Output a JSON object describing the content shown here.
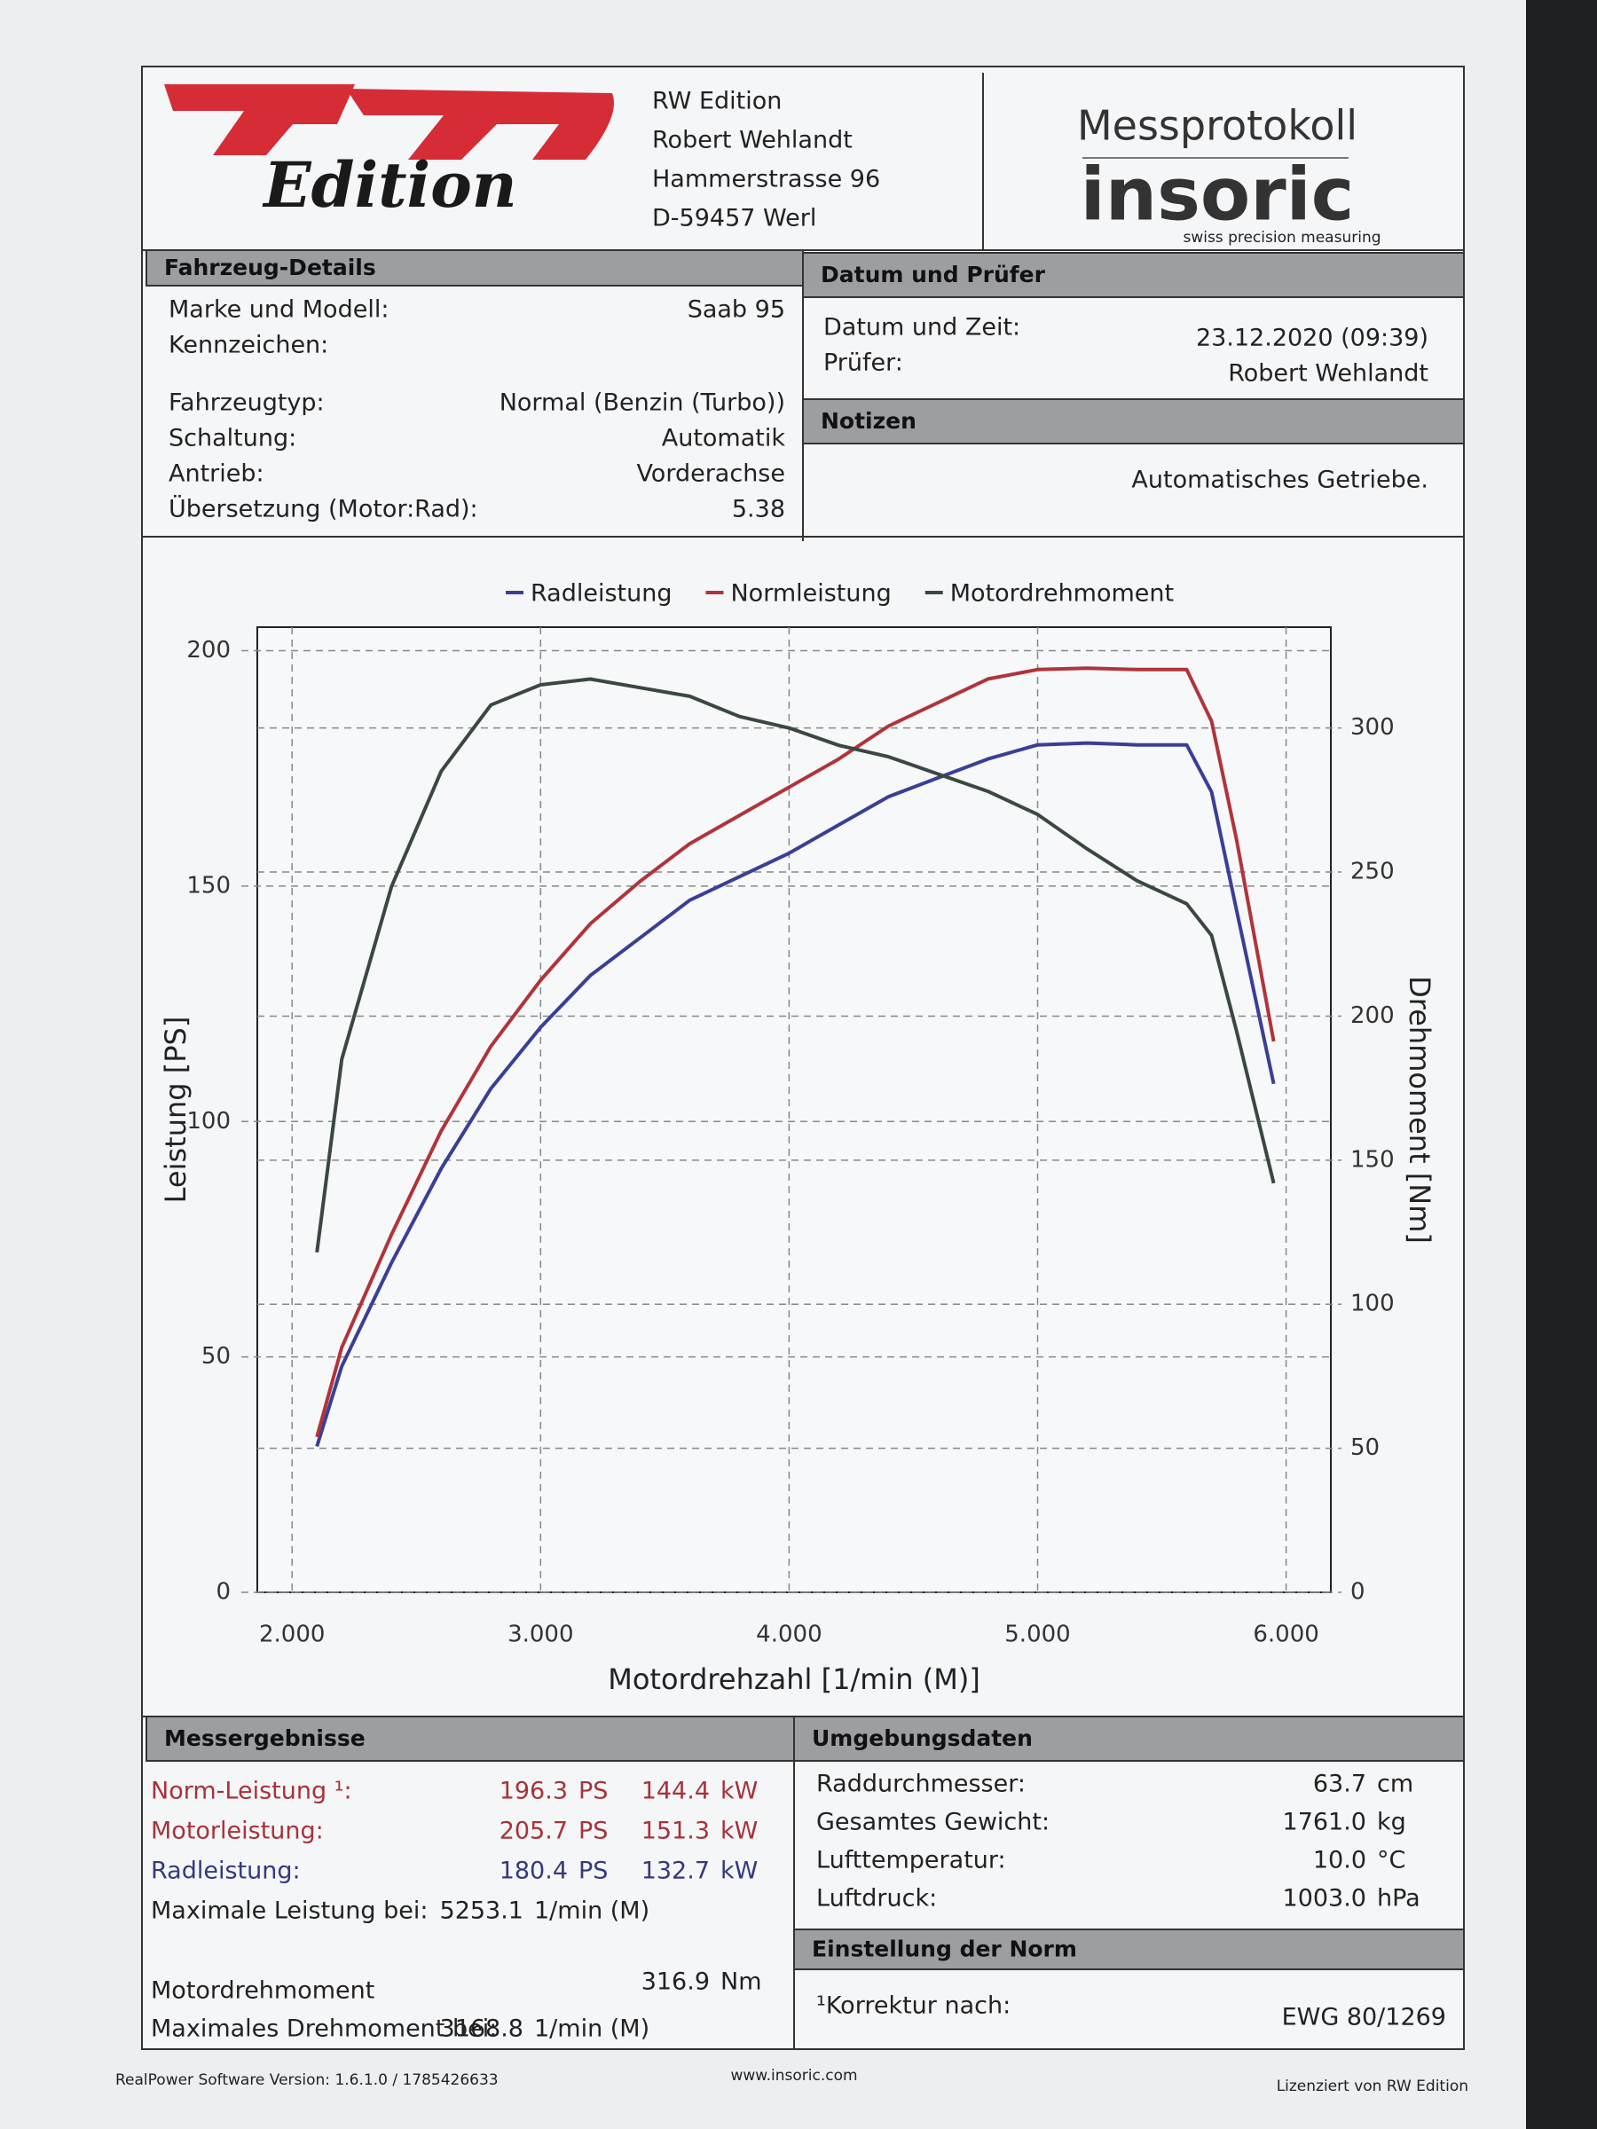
{
  "header": {
    "logo_text": "Edition",
    "address": [
      "RW Edition",
      "Robert Wehlandt",
      "Hammerstrasse 96",
      "D-59457 Werl"
    ],
    "title": "Messprotokoll",
    "brand": "insoric",
    "tagline": "swiss precision measuring"
  },
  "vehicle": {
    "title": "Fahrzeug-Details",
    "rows": [
      {
        "label": "Marke und Modell:",
        "value": "Saab 95"
      },
      {
        "label": "Kennzeichen:"
      },
      {
        "label": "Fahrzeugtyp:",
        "value": "Normal (Benzin (Turbo))"
      },
      {
        "label": "Schaltung:",
        "value": "Automatik"
      },
      {
        "label": "Antrieb:",
        "value": "Vorderachse"
      },
      {
        "label": "Übersetzung (Motor:Rad):",
        "value": "5.38"
      }
    ]
  },
  "inspection": {
    "title": "Datum und Prüfer",
    "rows": [
      {
        "label": "Datum und Zeit:",
        "value": "23.12.2020 (09:39)"
      },
      {
        "label": "Prüfer:",
        "value": "Robert Wehlandt"
      }
    ]
  },
  "notes": {
    "title": "Notizen",
    "text": "Automatisches Getriebe."
  },
  "chart_data": {
    "type": "line",
    "x_label": "Motordrehzahl [1/min (M)]",
    "y_label": "Leistung [PS]",
    "y2_label": "Drehmoment [Nm]",
    "x": [
      2100,
      2200,
      2400,
      2600,
      2800,
      3000,
      3200,
      3400,
      3600,
      3800,
      4000,
      4200,
      4400,
      4600,
      4800,
      5000,
      5200,
      5400,
      5600,
      5700,
      5800,
      5950
    ],
    "series": [
      {
        "name": "Radleistung",
        "color": "#3a3f96",
        "values": [
          31,
          48,
          70,
          90,
          107,
          120,
          131,
          139,
          147,
          152,
          157,
          163,
          169,
          173,
          177,
          180,
          180.4,
          180,
          180,
          170,
          145,
          108
        ]
      },
      {
        "name": "Normleistung",
        "color": "#b0343a",
        "values": [
          33,
          52,
          76,
          98,
          116,
          130,
          142,
          151,
          159,
          165,
          171,
          177,
          184,
          189,
          194,
          196,
          196.3,
          196,
          196,
          185,
          160,
          117
        ]
      },
      {
        "name": "Motordrehmoment",
        "color": "#3b4842",
        "axis": "y2",
        "values": [
          118,
          185,
          245,
          285,
          308,
          315,
          317,
          314,
          311,
          304,
          300,
          294,
          290,
          284,
          278,
          270,
          258,
          247,
          239,
          228,
          195,
          142
        ]
      }
    ],
    "xlim": [
      1860,
      6180
    ],
    "xticks": [
      {
        "value": 2000,
        "label": "2.000"
      },
      {
        "value": 3000,
        "label": "3.000"
      },
      {
        "value": 4000,
        "label": "4.000"
      },
      {
        "value": 5000,
        "label": "5.000"
      },
      {
        "value": 6000,
        "label": "6.000"
      }
    ],
    "ylim": [
      0,
      205
    ],
    "yticks": [
      0,
      50,
      100,
      150,
      200
    ],
    "y2lim": [
      0,
      335
    ],
    "y2ticks": [
      0,
      50,
      100,
      150,
      200,
      250,
      300
    ],
    "grid": true,
    "legend": "top"
  },
  "results": {
    "title": "Messergebnisse",
    "power_rows": [
      {
        "label": "Norm-Leistung ¹:",
        "ps": "196.3",
        "ps_unit": "PS",
        "kw": "144.4",
        "kw_unit": "kW"
      },
      {
        "label": "Motorleistung:",
        "ps": "205.7",
        "ps_unit": "PS",
        "kw": "151.3",
        "kw_unit": "kW"
      },
      {
        "label": "Radleistung:",
        "ps": "180.4",
        "ps_unit": "PS",
        "kw": "132.7",
        "kw_unit": "kW"
      }
    ],
    "max_power": {
      "label": "Maximale Leistung bei:",
      "value": "5253.1",
      "unit": "1/min (M)"
    },
    "torque": {
      "label": "Motordrehmoment",
      "value": "316.9",
      "unit": "Nm"
    },
    "max_torque": {
      "label": "Maximales Drehmoment bei:",
      "value": "3168.8",
      "unit": "1/min (M)"
    }
  },
  "environment": {
    "title": "Umgebungsdaten",
    "rows": [
      {
        "label": "Raddurchmesser:",
        "value": "63.7",
        "unit": "cm"
      },
      {
        "label": "Gesamtes Gewicht:",
        "value": "1761.0",
        "unit": "kg"
      },
      {
        "label": "Lufttemperatur:",
        "value": "10.0",
        "unit": "°C"
      },
      {
        "label": "Luftdruck:",
        "value": "1003.0",
        "unit": "hPa"
      }
    ]
  },
  "norm": {
    "title": "Einstellung der Norm",
    "label": "¹Korrektur nach:",
    "value": "EWG 80/1269"
  },
  "footer": {
    "software": "RealPower Software Version: 1.6.1.0 / 1785426633",
    "website": "www.insoric.com",
    "license": "Lizenziert von RW Edition"
  }
}
